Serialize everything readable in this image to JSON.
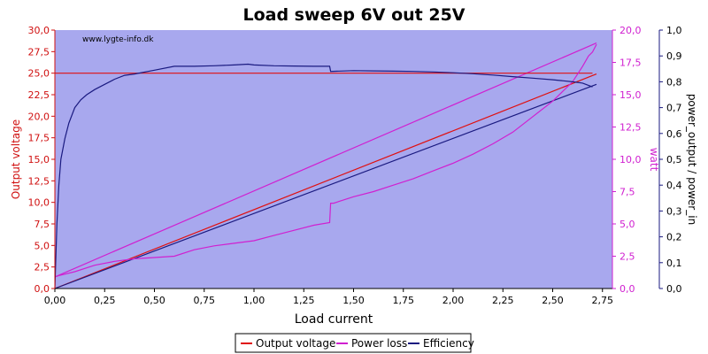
{
  "chart_data": {
    "type": "line",
    "title": "Load sweep 6V out 25V",
    "watermark": "www.lygte-info.dk",
    "xlabel": "Load current",
    "ylabel_left": "Output voltage",
    "ylabel_right1": "watt",
    "ylabel_right2": "power_output / power_in",
    "xlim": [
      0,
      2.8
    ],
    "ylim_left": [
      0,
      30
    ],
    "ylim_right1": [
      0,
      20
    ],
    "ylim_right2": [
      0,
      1
    ],
    "x_ticks": [
      "0,00",
      "0,25",
      "0,50",
      "0,75",
      "1,00",
      "1,25",
      "1,50",
      "1,75",
      "2,00",
      "2,25",
      "2,50",
      "2,75"
    ],
    "y_left_ticks": [
      "0,0",
      "2,5",
      "5,0",
      "7,5",
      "10,0",
      "12,5",
      "15,0",
      "17,5",
      "20,0",
      "22,5",
      "25,0",
      "27,5",
      "30,0"
    ],
    "y_right1_ticks": [
      "0,0",
      "2,5",
      "5,0",
      "7,5",
      "10,0",
      "12,5",
      "15,0",
      "17,5",
      "20,0"
    ],
    "y_right2_ticks": [
      "0,0",
      "0,1",
      "0,2",
      "0,3",
      "0,4",
      "0,5",
      "0,6",
      "0,7",
      "0,8",
      "0,9",
      "1,0"
    ],
    "grid": false,
    "legend_position": "bottom-center",
    "colors": {
      "plot_bg": "#a8a8ee",
      "voltage": "#e01010",
      "power_loss": "#d020d0",
      "efficiency": "#1a1a80",
      "axis_left": "#d01010",
      "axis_right1": "#d020d0",
      "axis_right2": "#1a1a80"
    },
    "series": [
      {
        "name": "Output voltage",
        "axis": "left",
        "x": [
          0.0,
          0.005,
          2.7
        ],
        "y": [
          25.0,
          25.0,
          25.0
        ]
      },
      {
        "name": "Power loss",
        "axis": "right1",
        "x": [
          0.0,
          0.02,
          0.1,
          0.2,
          0.3,
          0.4,
          0.5,
          0.6,
          0.7,
          0.8,
          0.9,
          1.0,
          1.1,
          1.2,
          1.3,
          1.38,
          1.385,
          1.4,
          1.5,
          1.6,
          1.7,
          1.8,
          1.9,
          2.0,
          2.1,
          2.2,
          2.3,
          2.4,
          2.5,
          2.6,
          2.65,
          2.68,
          2.7,
          2.71,
          2.72
        ],
        "y": [
          0.9,
          1.0,
          1.3,
          1.8,
          2.1,
          2.3,
          2.4,
          2.5,
          3.0,
          3.3,
          3.5,
          3.7,
          4.1,
          4.5,
          4.9,
          5.1,
          6.6,
          6.6,
          7.1,
          7.5,
          8.0,
          8.5,
          9.1,
          9.7,
          10.4,
          11.2,
          12.1,
          13.3,
          14.5,
          16.0,
          17.2,
          18.0,
          18.3,
          18.6,
          18.9
        ]
      },
      {
        "name": "Efficiency",
        "axis": "right2",
        "x": [
          0.0,
          0.01,
          0.02,
          0.03,
          0.05,
          0.07,
          0.1,
          0.13,
          0.16,
          0.2,
          0.25,
          0.3,
          0.35,
          0.4,
          0.5,
          0.6,
          0.7,
          0.8,
          0.9,
          0.97,
          1.0,
          1.1,
          1.2,
          1.3,
          1.38,
          1.385,
          1.5,
          1.6,
          1.7,
          1.8,
          1.9,
          2.0,
          2.1,
          2.2,
          2.3,
          2.4,
          2.5,
          2.6,
          2.65,
          2.7
        ],
        "y": [
          0.0,
          0.25,
          0.4,
          0.5,
          0.58,
          0.64,
          0.7,
          0.73,
          0.75,
          0.77,
          0.79,
          0.81,
          0.825,
          0.83,
          0.845,
          0.86,
          0.86,
          0.862,
          0.865,
          0.868,
          0.865,
          0.862,
          0.861,
          0.86,
          0.86,
          0.84,
          0.843,
          0.842,
          0.841,
          0.84,
          0.838,
          0.835,
          0.831,
          0.826,
          0.82,
          0.814,
          0.808,
          0.8,
          0.795,
          0.78
        ]
      }
    ],
    "extra_lines": [
      {
        "series": "Power loss",
        "axis": "right1",
        "x": [
          0.0,
          2.72
        ],
        "y": [
          0.9,
          19.0
        ]
      },
      {
        "series": "Output voltage",
        "axis": "right1",
        "x": [
          0.0,
          2.72
        ],
        "y": [
          0.0,
          16.6
        ]
      },
      {
        "series": "Efficiency",
        "axis": "right1",
        "x": [
          0.0,
          2.72
        ],
        "y": [
          0.0,
          15.8
        ]
      }
    ]
  }
}
